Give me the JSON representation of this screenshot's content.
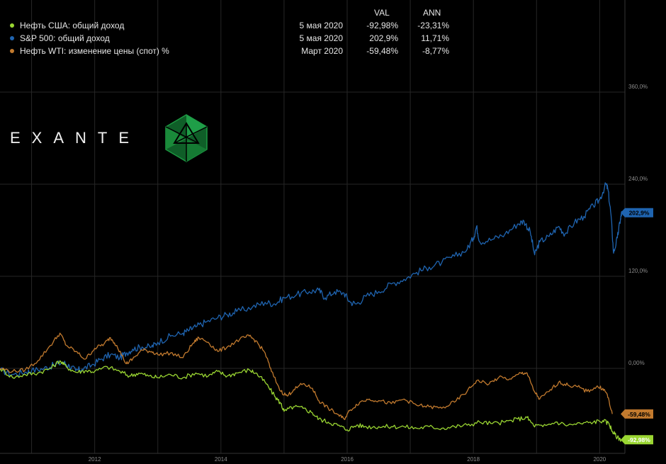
{
  "legend": {
    "col_val": "VAL",
    "col_ann": "ANN",
    "rows": [
      {
        "name": "Нефть США: общий доход",
        "date": "5 мая 2020",
        "val": "-92,98%",
        "ann": "-23,31%",
        "color": "#9ad632"
      },
      {
        "name": "S&P 500: общий доход",
        "date": "5 мая 2020",
        "val": "202,9%",
        "ann": "11,71%",
        "color": "#1f64b0"
      },
      {
        "name": "Нефть WTI: изменение цены (спот) %",
        "date": "Март 2020",
        "val": "-59,48%",
        "ann": "-8,77%",
        "color": "#c27a2e"
      }
    ]
  },
  "logo": {
    "text": "EXANTE",
    "mark_color": "#1a8a3a"
  },
  "chart_data": {
    "type": "line",
    "x_ticks": [
      "2012",
      "2014",
      "2016",
      "2018",
      "2020"
    ],
    "y_ticks": [
      "360,0%",
      "240,0%",
      "120,0%",
      "0,00%"
    ],
    "ylim": [
      -100,
      360
    ],
    "xlim": [
      2010.5,
      2020.4
    ],
    "grid": true,
    "series": [
      {
        "name": "S&P 500: общий доход",
        "color": "#1f64b0",
        "end_label": "202,9%",
        "points": [
          [
            2010.5,
            -2
          ],
          [
            2010.7,
            -8
          ],
          [
            2010.9,
            -5
          ],
          [
            2011.0,
            -3
          ],
          [
            2011.2,
            0
          ],
          [
            2011.35,
            4
          ],
          [
            2011.5,
            8
          ],
          [
            2011.6,
            3
          ],
          [
            2011.7,
            -3
          ],
          [
            2011.8,
            -1
          ],
          [
            2011.95,
            4
          ],
          [
            2012.1,
            12
          ],
          [
            2012.25,
            18
          ],
          [
            2012.4,
            14
          ],
          [
            2012.5,
            20
          ],
          [
            2012.6,
            25
          ],
          [
            2012.75,
            28
          ],
          [
            2012.9,
            28
          ],
          [
            2013.0,
            34
          ],
          [
            2013.2,
            42
          ],
          [
            2013.4,
            46
          ],
          [
            2013.5,
            50
          ],
          [
            2013.6,
            54
          ],
          [
            2013.75,
            60
          ],
          [
            2013.95,
            66
          ],
          [
            2014.1,
            70
          ],
          [
            2014.25,
            74
          ],
          [
            2014.5,
            80
          ],
          [
            2014.7,
            86
          ],
          [
            2014.85,
            84
          ],
          [
            2015.0,
            92
          ],
          [
            2015.2,
            96
          ],
          [
            2015.4,
            100
          ],
          [
            2015.55,
            102
          ],
          [
            2015.65,
            92
          ],
          [
            2015.8,
            100
          ],
          [
            2015.95,
            98
          ],
          [
            2016.05,
            86
          ],
          [
            2016.15,
            84
          ],
          [
            2016.3,
            94
          ],
          [
            2016.5,
            100
          ],
          [
            2016.7,
            110
          ],
          [
            2016.9,
            116
          ],
          [
            2017.1,
            125
          ],
          [
            2017.3,
            132
          ],
          [
            2017.5,
            138
          ],
          [
            2017.7,
            146
          ],
          [
            2017.9,
            155
          ],
          [
            2018.0,
            170
          ],
          [
            2018.05,
            185
          ],
          [
            2018.1,
            165
          ],
          [
            2018.3,
            168
          ],
          [
            2018.5,
            175
          ],
          [
            2018.7,
            188
          ],
          [
            2018.8,
            192
          ],
          [
            2018.9,
            178
          ],
          [
            2018.97,
            148
          ],
          [
            2019.05,
            165
          ],
          [
            2019.2,
            172
          ],
          [
            2019.35,
            185
          ],
          [
            2019.45,
            175
          ],
          [
            2019.6,
            190
          ],
          [
            2019.75,
            198
          ],
          [
            2019.9,
            212
          ],
          [
            2020.0,
            220
          ],
          [
            2020.1,
            240
          ],
          [
            2020.13,
            234
          ],
          [
            2020.18,
            200
          ],
          [
            2020.22,
            150
          ],
          [
            2020.28,
            170
          ],
          [
            2020.33,
            195
          ],
          [
            2020.35,
            202.9
          ]
        ]
      },
      {
        "name": "Нефть США: общий доход",
        "color": "#9ad632",
        "end_label": "-92,98%",
        "points": [
          [
            2010.5,
            0
          ],
          [
            2010.7,
            -12
          ],
          [
            2010.9,
            -8
          ],
          [
            2011.1,
            -6
          ],
          [
            2011.3,
            0
          ],
          [
            2011.45,
            10
          ],
          [
            2011.55,
            2
          ],
          [
            2011.7,
            -5
          ],
          [
            2011.85,
            -3
          ],
          [
            2012.0,
            -4
          ],
          [
            2012.2,
            2
          ],
          [
            2012.4,
            -4
          ],
          [
            2012.55,
            -10
          ],
          [
            2012.7,
            -6
          ],
          [
            2012.85,
            -10
          ],
          [
            2013.0,
            -12
          ],
          [
            2013.2,
            -8
          ],
          [
            2013.4,
            -12
          ],
          [
            2013.6,
            -6
          ],
          [
            2013.8,
            -10
          ],
          [
            2013.95,
            -4
          ],
          [
            2014.1,
            -10
          ],
          [
            2014.25,
            -6
          ],
          [
            2014.45,
            -2
          ],
          [
            2014.55,
            -6
          ],
          [
            2014.7,
            -18
          ],
          [
            2014.85,
            -36
          ],
          [
            2014.95,
            -46
          ],
          [
            2015.0,
            -56
          ],
          [
            2015.15,
            -50
          ],
          [
            2015.3,
            -52
          ],
          [
            2015.45,
            -58
          ],
          [
            2015.55,
            -66
          ],
          [
            2015.7,
            -70
          ],
          [
            2015.85,
            -74
          ],
          [
            2016.0,
            -80
          ],
          [
            2016.15,
            -74
          ],
          [
            2016.3,
            -76
          ],
          [
            2016.5,
            -76
          ],
          [
            2016.7,
            -76
          ],
          [
            2016.9,
            -76
          ],
          [
            2017.1,
            -78
          ],
          [
            2017.3,
            -76
          ],
          [
            2017.5,
            -78
          ],
          [
            2017.7,
            -76
          ],
          [
            2017.9,
            -74
          ],
          [
            2018.1,
            -70
          ],
          [
            2018.3,
            -72
          ],
          [
            2018.5,
            -70
          ],
          [
            2018.7,
            -66
          ],
          [
            2018.85,
            -64
          ],
          [
            2018.95,
            -74
          ],
          [
            2019.1,
            -76
          ],
          [
            2019.3,
            -70
          ],
          [
            2019.5,
            -74
          ],
          [
            2019.7,
            -72
          ],
          [
            2019.9,
            -70
          ],
          [
            2020.05,
            -68
          ],
          [
            2020.15,
            -72
          ],
          [
            2020.2,
            -82
          ],
          [
            2020.28,
            -90
          ],
          [
            2020.35,
            -92.98
          ]
        ]
      },
      {
        "name": "Нефть WTI: изменение цены (спот) %",
        "color": "#c27a2e",
        "end_label": "-59,48%",
        "points": [
          [
            2010.5,
            0
          ],
          [
            2010.7,
            -4
          ],
          [
            2010.9,
            -2
          ],
          [
            2011.1,
            10
          ],
          [
            2011.3,
            30
          ],
          [
            2011.45,
            46
          ],
          [
            2011.55,
            30
          ],
          [
            2011.7,
            22
          ],
          [
            2011.85,
            12
          ],
          [
            2012.0,
            26
          ],
          [
            2012.15,
            32
          ],
          [
            2012.25,
            40
          ],
          [
            2012.35,
            30
          ],
          [
            2012.5,
            6
          ],
          [
            2012.6,
            12
          ],
          [
            2012.75,
            24
          ],
          [
            2012.9,
            22
          ],
          [
            2013.0,
            18
          ],
          [
            2013.2,
            20
          ],
          [
            2013.4,
            14
          ],
          [
            2013.55,
            32
          ],
          [
            2013.65,
            40
          ],
          [
            2013.8,
            34
          ],
          [
            2013.95,
            22
          ],
          [
            2014.1,
            28
          ],
          [
            2014.3,
            38
          ],
          [
            2014.45,
            42
          ],
          [
            2014.55,
            36
          ],
          [
            2014.7,
            20
          ],
          [
            2014.8,
            -4
          ],
          [
            2014.95,
            -30
          ],
          [
            2015.05,
            -36
          ],
          [
            2015.15,
            -28
          ],
          [
            2015.3,
            -20
          ],
          [
            2015.45,
            -26
          ],
          [
            2015.55,
            -42
          ],
          [
            2015.7,
            -52
          ],
          [
            2015.85,
            -60
          ],
          [
            2015.95,
            -66
          ],
          [
            2016.05,
            -54
          ],
          [
            2016.2,
            -44
          ],
          [
            2016.35,
            -40
          ],
          [
            2016.5,
            -42
          ],
          [
            2016.7,
            -46
          ],
          [
            2016.9,
            -40
          ],
          [
            2017.1,
            -48
          ],
          [
            2017.3,
            -50
          ],
          [
            2017.5,
            -52
          ],
          [
            2017.7,
            -44
          ],
          [
            2017.9,
            -30
          ],
          [
            2018.05,
            -16
          ],
          [
            2018.25,
            -20
          ],
          [
            2018.4,
            -12
          ],
          [
            2018.6,
            -14
          ],
          [
            2018.75,
            -6
          ],
          [
            2018.85,
            -6
          ],
          [
            2018.95,
            -28
          ],
          [
            2019.05,
            -40
          ],
          [
            2019.2,
            -30
          ],
          [
            2019.35,
            -18
          ],
          [
            2019.5,
            -22
          ],
          [
            2019.65,
            -24
          ],
          [
            2019.8,
            -30
          ],
          [
            2019.95,
            -24
          ],
          [
            2020.05,
            -26
          ],
          [
            2020.12,
            -34
          ],
          [
            2020.2,
            -59.48
          ]
        ]
      }
    ]
  }
}
